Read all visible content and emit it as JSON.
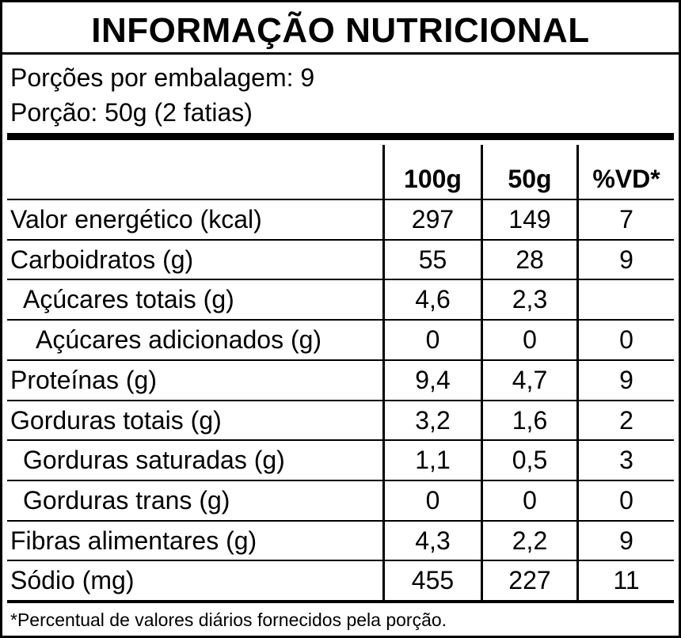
{
  "title": "INFORMAÇÃO NUTRICIONAL",
  "servings": "Porções por embalagem: 9",
  "portion": "Porção: 50g (2 fatias)",
  "columns": [
    "100g",
    "50g",
    "%VD*"
  ],
  "rows": [
    {
      "name": "Valor energético (kcal)",
      "v100": "297",
      "v50": "149",
      "vd": "7"
    },
    {
      "name": "Carboidratos (g)",
      "v100": "55",
      "v50": "28",
      "vd": "9"
    },
    {
      "name": "Açúcares totais (g)",
      "v100": "4,6",
      "v50": "2,3",
      "vd": ""
    },
    {
      "name": "Açúcares adicionados (g)",
      "v100": "0",
      "v50": "0",
      "vd": "0"
    },
    {
      "name": "Proteínas (g)",
      "v100": "9,4",
      "v50": "4,7",
      "vd": "9"
    },
    {
      "name": "Gorduras totais (g)",
      "v100": "3,2",
      "v50": "1,6",
      "vd": "2"
    },
    {
      "name": "Gorduras saturadas (g)",
      "v100": "1,1",
      "v50": "0,5",
      "vd": "3"
    },
    {
      "name": "Gorduras trans (g)",
      "v100": "0",
      "v50": "0",
      "vd": "0"
    },
    {
      "name": "Fibras alimentares (g)",
      "v100": "4,3",
      "v50": "2,2",
      "vd": "9"
    },
    {
      "name": "Sódio (mg)",
      "v100": "455",
      "v50": "227",
      "vd": "11"
    }
  ],
  "footnote": "*Percentual de valores diários fornecidos pela porção."
}
